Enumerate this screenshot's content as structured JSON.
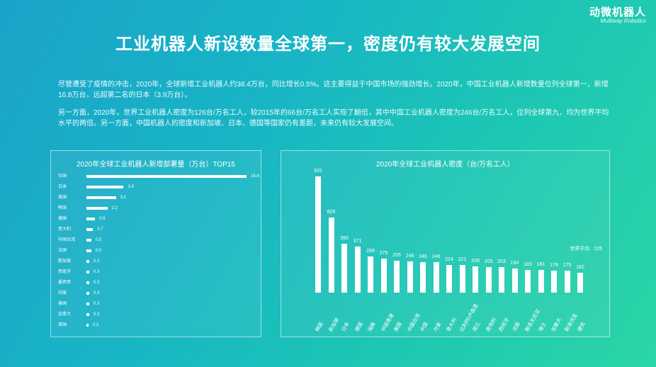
{
  "logo": {
    "cn": "动微机器人",
    "en": "Multiway Robotics"
  },
  "title": "工业机器人新设数量全球第一，密度仍有较大发展空间",
  "paragraphs": [
    "尽管遭受了疫情的冲击，2020年，全球新增工业机器人约38.4万台，同比增长0.5%。这主要得益于中国市场的强劲增长。2020年，中国工业机器人新增数量位列全球第一，新增16.8万台，远超第二名的日本（3.9万台）。",
    "另一方面，2020年，世界工业机器人密度为126台/万名工人，较2015年的66台/万名工人实现了翻倍，其中中国工业机器人密度为246台/万名工人，位列全球第九，均为世界平均水平的两倍。另一方面，中国机器人的密度和新加坡、日本、德国等国家仍有差距，未来仍有较大发展空间。"
  ],
  "chart_data": [
    {
      "type": "bar",
      "orientation": "horizontal",
      "title": "2020年全球工业机器人新增部署量（万台）TOP15",
      "categories": [
        "中国",
        "日本",
        "美国",
        "韩国",
        "德国",
        "意大利",
        "中国台湾",
        "法国",
        "新加坡",
        "西班牙",
        "墨西哥",
        "印度",
        "泰国",
        "加拿大",
        "英国"
      ],
      "values": [
        16.8,
        3.9,
        3.1,
        2.2,
        0.9,
        0.7,
        0.5,
        0.5,
        0.3,
        0.3,
        0.3,
        0.3,
        0.3,
        0.3,
        0.2
      ],
      "xlim": [
        0,
        16.8
      ],
      "grid": false
    },
    {
      "type": "bar",
      "orientation": "vertical",
      "title": "2020年全球工业机器人密度（台/万名工人）",
      "categories": [
        "韩国",
        "新加坡",
        "日本",
        "德国",
        "瑞典",
        "中国香港",
        "美国",
        "中国台湾",
        "中国",
        "丹麦",
        "意大利",
        "比利时/卢森堡",
        "荷兰",
        "奥地利",
        "西班牙",
        "法国",
        "斯洛文尼亚",
        "瑞士",
        "加拿大",
        "斯洛伐克",
        "捷克"
      ],
      "values": [
        932,
        605,
        390,
        371,
        289,
        275,
        255,
        248,
        246,
        246,
        224,
        221,
        209,
        205,
        203,
        194,
        183,
        181,
        179,
        175,
        162
      ],
      "ylim": [
        0,
        932
      ],
      "grid": false,
      "annotation": {
        "label": "世界平均",
        "value": 126
      }
    }
  ]
}
